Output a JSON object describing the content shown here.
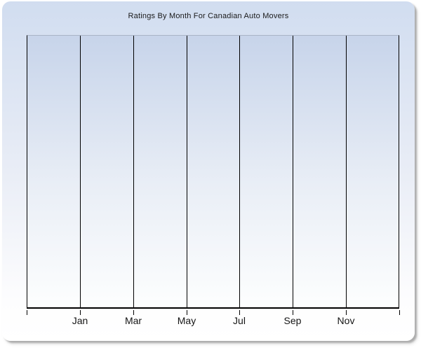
{
  "page": {
    "background_color": "#ffffff"
  },
  "card": {
    "gradient_top_color": "#d1ddf0",
    "gradient_bottom_color": "#ffffff",
    "shadow_color": "#6a6a6a"
  },
  "chart_data": {
    "type": "line",
    "title": "Ratings By Month For Canadian Auto Movers",
    "title_color": "#191919",
    "xlabel": "",
    "ylabel": "",
    "x_tick_labels": [
      "Jan",
      "Mar",
      "May",
      "Jul",
      "Sep",
      "Nov"
    ],
    "x_intervals": 7,
    "x_tick_count": 8,
    "series": [],
    "grid": "vertical-only",
    "gridline_color": "#000000",
    "axis_color": "#000000",
    "plot_top_border_color": "#a9b3c6",
    "plot_bg_top_color": "#c7d4ea",
    "plot_bg_bottom_color": "#fdfefe",
    "y_axis_labels_visible": false,
    "legend": null
  }
}
